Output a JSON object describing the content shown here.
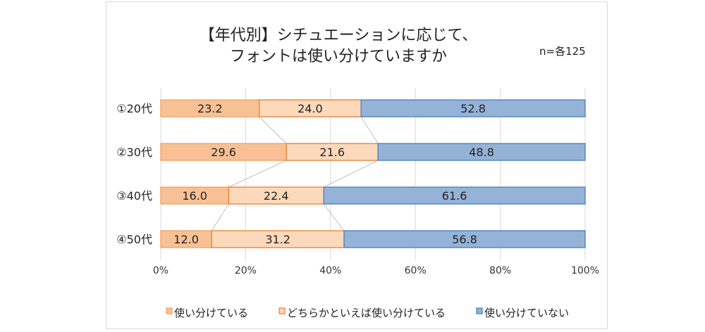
{
  "chart_data": {
    "type": "bar",
    "orientation": "horizontal",
    "stacked": "100%",
    "title": [
      "【年代別】シチュエーションに応じて、",
      "フォントは使い分けていますか"
    ],
    "note": "n=各125",
    "categories": [
      "①20代",
      "②30代",
      "③40代",
      "④50代"
    ],
    "series": [
      {
        "name": "使い分けている",
        "values": [
          23.2,
          29.6,
          16.0,
          12.0
        ],
        "color": "#f8c195",
        "edge": "#f0a060"
      },
      {
        "name": "どちらかといえば使い分けている",
        "values": [
          24.0,
          21.6,
          22.4,
          31.2
        ],
        "color": "#fcd9bb",
        "edge": "#ed7d31"
      },
      {
        "name": "使い分けていない",
        "values": [
          52.8,
          48.8,
          61.6,
          56.8
        ],
        "color": "#95b3d7",
        "edge": "#4a7ebb"
      }
    ],
    "xticks": [
      "0%",
      "20%",
      "40%",
      "60%",
      "80%",
      "100%"
    ],
    "xlim": [
      0,
      100
    ],
    "grid": true,
    "series_lines": true,
    "legend": "bottom"
  }
}
